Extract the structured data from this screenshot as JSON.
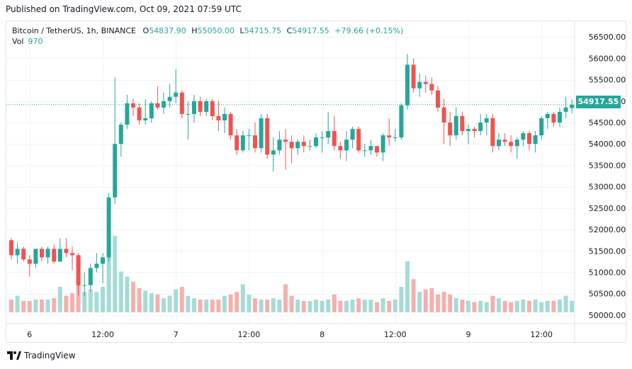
{
  "header": {
    "published": "Published on TradingView.com, Oct 09, 2021 07:59 UTC"
  },
  "legend": {
    "symbol": "Bitcoin / TetherUS, 1h, BINANCE",
    "open_label": "O",
    "open": "54837.90",
    "high_label": "H",
    "high": "55050.00",
    "low_label": "L",
    "low": "54715.75",
    "close_label": "C",
    "close": "54917.55",
    "change": "+79.66 (+0.15%)",
    "vol_label": "Vol",
    "vol": "970"
  },
  "last_price": "54917.55",
  "footer": {
    "brand": "TradingView"
  },
  "colors": {
    "up": "#26a69a",
    "down": "#ef5350",
    "vol_up": "#a6dbd6",
    "vol_down": "#f5b0ae",
    "grid": "#f0f3fa"
  },
  "chart_data": {
    "type": "candlestick",
    "ylim": [
      49800,
      56800
    ],
    "y_ticks": [
      "56500.00",
      "56000.00",
      "55500.00",
      "55000.00",
      "54500.00",
      "54000.00",
      "53500.00",
      "53000.00",
      "52500.00",
      "52000.00",
      "51500.00",
      "51000.00",
      "50500.00",
      "50000.00"
    ],
    "x_ticks": [
      {
        "label": "6",
        "bar": 3
      },
      {
        "label": "12:00",
        "bar": 15
      },
      {
        "label": "7",
        "bar": 27
      },
      {
        "label": "12:00",
        "bar": 39
      },
      {
        "label": "8",
        "bar": 51
      },
      {
        "label": "12:00",
        "bar": 63
      },
      {
        "label": "9",
        "bar": 75
      },
      {
        "label": "12:00",
        "bar": 87
      }
    ],
    "last_price": 54917.55,
    "candles": [
      {
        "o": 51750,
        "h": 51800,
        "l": 51300,
        "c": 51400,
        "v": 1.0
      },
      {
        "o": 51400,
        "h": 51700,
        "l": 51200,
        "c": 51550,
        "v": 1.3
      },
      {
        "o": 51550,
        "h": 51600,
        "l": 51250,
        "c": 51300,
        "v": 0.9
      },
      {
        "o": 51300,
        "h": 51400,
        "l": 50900,
        "c": 51200,
        "v": 0.9
      },
      {
        "o": 51200,
        "h": 51550,
        "l": 51100,
        "c": 51550,
        "v": 1.0
      },
      {
        "o": 51550,
        "h": 51600,
        "l": 51250,
        "c": 51350,
        "v": 1.0
      },
      {
        "o": 51350,
        "h": 51600,
        "l": 51200,
        "c": 51550,
        "v": 1.0
      },
      {
        "o": 51550,
        "h": 51650,
        "l": 51200,
        "c": 51250,
        "v": 1.1
      },
      {
        "o": 51250,
        "h": 51800,
        "l": 51250,
        "c": 51550,
        "v": 2.0
      },
      {
        "o": 51550,
        "h": 51800,
        "l": 51350,
        "c": 51450,
        "v": 1.3
      },
      {
        "o": 51450,
        "h": 51600,
        "l": 51050,
        "c": 51400,
        "v": 1.5
      },
      {
        "o": 51400,
        "h": 51450,
        "l": 50450,
        "c": 50700,
        "v": 2.5
      },
      {
        "o": 50700,
        "h": 51000,
        "l": 50450,
        "c": 50700,
        "v": 1.6
      },
      {
        "o": 50700,
        "h": 51200,
        "l": 50550,
        "c": 51100,
        "v": 1.8
      },
      {
        "o": 51100,
        "h": 51450,
        "l": 51000,
        "c": 51200,
        "v": 1.6
      },
      {
        "o": 51200,
        "h": 51450,
        "l": 50750,
        "c": 51350,
        "v": 2.0
      },
      {
        "o": 51350,
        "h": 52850,
        "l": 51250,
        "c": 52750,
        "v": 5.0
      },
      {
        "o": 52750,
        "h": 55550,
        "l": 52600,
        "c": 54000,
        "v": 6.0
      },
      {
        "o": 54000,
        "h": 54500,
        "l": 53700,
        "c": 54450,
        "v": 3.2
      },
      {
        "o": 54450,
        "h": 55150,
        "l": 54350,
        "c": 54950,
        "v": 2.8
      },
      {
        "o": 54950,
        "h": 55050,
        "l": 54650,
        "c": 54850,
        "v": 2.4
      },
      {
        "o": 54850,
        "h": 54950,
        "l": 54450,
        "c": 54550,
        "v": 1.9
      },
      {
        "o": 54550,
        "h": 55050,
        "l": 54450,
        "c": 54600,
        "v": 1.7
      },
      {
        "o": 54600,
        "h": 55000,
        "l": 54500,
        "c": 54950,
        "v": 1.5
      },
      {
        "o": 54950,
        "h": 55350,
        "l": 54800,
        "c": 54850,
        "v": 1.4
      },
      {
        "o": 54850,
        "h": 55200,
        "l": 54700,
        "c": 55000,
        "v": 1.1
      },
      {
        "o": 55000,
        "h": 55400,
        "l": 54850,
        "c": 55100,
        "v": 1.3
      },
      {
        "o": 55100,
        "h": 55750,
        "l": 54950,
        "c": 55200,
        "v": 1.8
      },
      {
        "o": 55200,
        "h": 55250,
        "l": 54600,
        "c": 54700,
        "v": 2.0
      },
      {
        "o": 54700,
        "h": 55000,
        "l": 54100,
        "c": 54700,
        "v": 1.3
      },
      {
        "o": 54700,
        "h": 55150,
        "l": 54500,
        "c": 55000,
        "v": 1.1
      },
      {
        "o": 55000,
        "h": 55100,
        "l": 54650,
        "c": 54750,
        "v": 1.0
      },
      {
        "o": 54750,
        "h": 55050,
        "l": 54650,
        "c": 55000,
        "v": 1.0
      },
      {
        "o": 55000,
        "h": 55050,
        "l": 54550,
        "c": 54650,
        "v": 1.0
      },
      {
        "o": 54650,
        "h": 55000,
        "l": 54300,
        "c": 54550,
        "v": 1.0
      },
      {
        "o": 54550,
        "h": 54850,
        "l": 54250,
        "c": 54700,
        "v": 1.3
      },
      {
        "o": 54700,
        "h": 54750,
        "l": 54100,
        "c": 54200,
        "v": 1.4
      },
      {
        "o": 54200,
        "h": 54350,
        "l": 53750,
        "c": 53850,
        "v": 1.6
      },
      {
        "o": 53850,
        "h": 54300,
        "l": 53800,
        "c": 54200,
        "v": 2.2
      },
      {
        "o": 54200,
        "h": 54350,
        "l": 53850,
        "c": 54200,
        "v": 1.4
      },
      {
        "o": 54200,
        "h": 54500,
        "l": 53800,
        "c": 53900,
        "v": 1.1
      },
      {
        "o": 53900,
        "h": 54700,
        "l": 53800,
        "c": 54600,
        "v": 1.0
      },
      {
        "o": 54600,
        "h": 54700,
        "l": 53650,
        "c": 53750,
        "v": 1.0
      },
      {
        "o": 53750,
        "h": 54150,
        "l": 53350,
        "c": 53850,
        "v": 1.1
      },
      {
        "o": 53850,
        "h": 54300,
        "l": 53750,
        "c": 54100,
        "v": 1.0
      },
      {
        "o": 54100,
        "h": 54350,
        "l": 53400,
        "c": 54050,
        "v": 2.2
      },
      {
        "o": 54050,
        "h": 54200,
        "l": 53550,
        "c": 53900,
        "v": 1.3
      },
      {
        "o": 53900,
        "h": 54100,
        "l": 53750,
        "c": 54050,
        "v": 1.0
      },
      {
        "o": 54050,
        "h": 54200,
        "l": 53800,
        "c": 53950,
        "v": 0.9
      },
      {
        "o": 53950,
        "h": 54100,
        "l": 53850,
        "c": 53950,
        "v": 0.9
      },
      {
        "o": 53950,
        "h": 54250,
        "l": 53900,
        "c": 54150,
        "v": 1.0
      },
      {
        "o": 54150,
        "h": 54300,
        "l": 53800,
        "c": 54150,
        "v": 0.9
      },
      {
        "o": 54150,
        "h": 54750,
        "l": 54000,
        "c": 54300,
        "v": 1.0
      },
      {
        "o": 54300,
        "h": 54650,
        "l": 53850,
        "c": 53950,
        "v": 1.4
      },
      {
        "o": 53950,
        "h": 54050,
        "l": 53650,
        "c": 53850,
        "v": 0.9
      },
      {
        "o": 53850,
        "h": 54300,
        "l": 53600,
        "c": 54100,
        "v": 0.9
      },
      {
        "o": 54100,
        "h": 54400,
        "l": 53900,
        "c": 54350,
        "v": 1.0
      },
      {
        "o": 54350,
        "h": 54400,
        "l": 53800,
        "c": 53850,
        "v": 1.1
      },
      {
        "o": 53850,
        "h": 54000,
        "l": 53700,
        "c": 53850,
        "v": 1.0
      },
      {
        "o": 53850,
        "h": 54100,
        "l": 53750,
        "c": 53950,
        "v": 1.0
      },
      {
        "o": 53950,
        "h": 53950,
        "l": 53700,
        "c": 53800,
        "v": 0.8
      },
      {
        "o": 53800,
        "h": 54250,
        "l": 53600,
        "c": 54200,
        "v": 1.1
      },
      {
        "o": 54200,
        "h": 54600,
        "l": 53950,
        "c": 54150,
        "v": 0.9
      },
      {
        "o": 54150,
        "h": 54350,
        "l": 54050,
        "c": 54150,
        "v": 1.0
      },
      {
        "o": 54150,
        "h": 54950,
        "l": 54100,
        "c": 54900,
        "v": 2.0
      },
      {
        "o": 54900,
        "h": 56100,
        "l": 54800,
        "c": 55850,
        "v": 4.0
      },
      {
        "o": 55850,
        "h": 56000,
        "l": 55200,
        "c": 55300,
        "v": 2.6
      },
      {
        "o": 55300,
        "h": 55650,
        "l": 55100,
        "c": 55450,
        "v": 1.6
      },
      {
        "o": 55450,
        "h": 55600,
        "l": 55200,
        "c": 55400,
        "v": 1.8
      },
      {
        "o": 55400,
        "h": 55550,
        "l": 55150,
        "c": 55250,
        "v": 1.9
      },
      {
        "o": 55250,
        "h": 55350,
        "l": 54750,
        "c": 54850,
        "v": 1.4
      },
      {
        "o": 54850,
        "h": 55050,
        "l": 54000,
        "c": 54500,
        "v": 1.6
      },
      {
        "o": 54500,
        "h": 54750,
        "l": 53950,
        "c": 54200,
        "v": 1.4
      },
      {
        "o": 54200,
        "h": 54850,
        "l": 54100,
        "c": 54650,
        "v": 1.1
      },
      {
        "o": 54650,
        "h": 54750,
        "l": 54200,
        "c": 54300,
        "v": 1.0
      },
      {
        "o": 54300,
        "h": 54450,
        "l": 54000,
        "c": 54350,
        "v": 0.9
      },
      {
        "o": 54350,
        "h": 54400,
        "l": 54150,
        "c": 54300,
        "v": 0.8
      },
      {
        "o": 54300,
        "h": 54700,
        "l": 54200,
        "c": 54500,
        "v": 0.9
      },
      {
        "o": 54500,
        "h": 54700,
        "l": 54200,
        "c": 54600,
        "v": 0.8
      },
      {
        "o": 54600,
        "h": 54700,
        "l": 53800,
        "c": 53950,
        "v": 1.3
      },
      {
        "o": 53950,
        "h": 54250,
        "l": 53850,
        "c": 54100,
        "v": 1.1
      },
      {
        "o": 54100,
        "h": 54250,
        "l": 53950,
        "c": 54050,
        "v": 0.9
      },
      {
        "o": 54050,
        "h": 54200,
        "l": 53800,
        "c": 53950,
        "v": 0.8
      },
      {
        "o": 53950,
        "h": 54150,
        "l": 53650,
        "c": 54100,
        "v": 0.9
      },
      {
        "o": 54100,
        "h": 54300,
        "l": 53950,
        "c": 54250,
        "v": 1.0
      },
      {
        "o": 54250,
        "h": 54300,
        "l": 53850,
        "c": 54000,
        "v": 0.9
      },
      {
        "o": 54000,
        "h": 54300,
        "l": 53800,
        "c": 54200,
        "v": 1.0
      },
      {
        "o": 54200,
        "h": 54650,
        "l": 54100,
        "c": 54600,
        "v": 0.8
      },
      {
        "o": 54600,
        "h": 54750,
        "l": 54350,
        "c": 54700,
        "v": 0.9
      },
      {
        "o": 54700,
        "h": 54750,
        "l": 54400,
        "c": 54500,
        "v": 0.9
      },
      {
        "o": 54500,
        "h": 54850,
        "l": 54400,
        "c": 54750,
        "v": 1.0
      },
      {
        "o": 54750,
        "h": 55100,
        "l": 54600,
        "c": 54850,
        "v": 1.3
      },
      {
        "o": 54837.9,
        "h": 55050,
        "l": 54715.75,
        "c": 54917.55,
        "v": 0.9
      }
    ]
  }
}
